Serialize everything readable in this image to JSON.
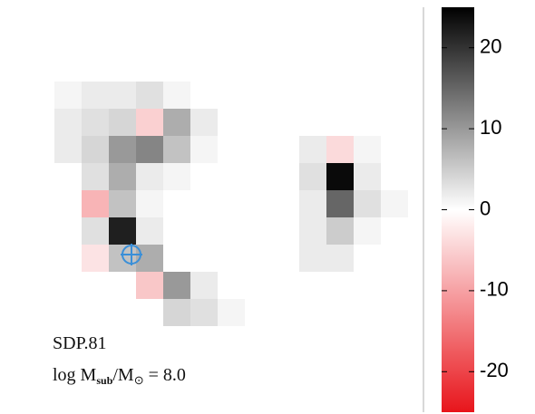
{
  "chart_data": {
    "type": "heatmap",
    "annotations": [
      "SDP.81"
    ],
    "label_parts": [
      "log M",
      "sub",
      "/M",
      "⊙",
      " = 8.0"
    ],
    "clim": [
      -25,
      25
    ],
    "cticks": [
      -20,
      -10,
      0,
      10,
      20
    ],
    "colormap": [
      "#e8151b",
      "#ffffff",
      "#000000"
    ],
    "marker_color": "#3a8fd8",
    "values": [
      [
        null,
        null,
        null,
        null,
        null,
        null,
        null,
        null,
        null,
        null,
        null,
        null,
        null,
        null,
        null
      ],
      [
        null,
        null,
        null,
        null,
        null,
        null,
        null,
        null,
        null,
        null,
        null,
        null,
        null,
        null,
        null
      ],
      [
        null,
        null,
        null,
        null,
        null,
        null,
        null,
        null,
        null,
        null,
        null,
        null,
        null,
        null,
        null
      ],
      [
        null,
        null,
        1,
        2,
        2,
        3,
        1,
        null,
        null,
        null,
        null,
        null,
        null,
        null,
        null
      ],
      [
        null,
        null,
        2,
        3,
        4,
        -5,
        8,
        2,
        null,
        null,
        null,
        null,
        null,
        null,
        null
      ],
      [
        null,
        null,
        2,
        4,
        10,
        12,
        6,
        1,
        null,
        null,
        null,
        2,
        -4,
        1,
        null
      ],
      [
        null,
        null,
        null,
        3,
        8,
        2,
        1,
        null,
        null,
        null,
        null,
        3,
        24,
        2,
        null
      ],
      [
        null,
        null,
        null,
        -8,
        6,
        1,
        null,
        null,
        null,
        null,
        null,
        2,
        15,
        3,
        1
      ],
      [
        null,
        null,
        null,
        3,
        22,
        2,
        null,
        null,
        null,
        null,
        null,
        2,
        5,
        1,
        null
      ],
      [
        null,
        null,
        null,
        -3,
        6,
        8,
        null,
        null,
        null,
        null,
        null,
        2,
        2,
        null,
        null
      ],
      [
        null,
        null,
        null,
        null,
        null,
        -6,
        10,
        2,
        null,
        null,
        null,
        null,
        null,
        null,
        null
      ],
      [
        null,
        null,
        null,
        null,
        null,
        null,
        4,
        3,
        1,
        null,
        null,
        null,
        null,
        null,
        null
      ],
      [
        null,
        null,
        null,
        null,
        null,
        null,
        null,
        null,
        null,
        null,
        null,
        null,
        null,
        null,
        null
      ],
      [
        null,
        null,
        null,
        null,
        null,
        null,
        null,
        null,
        null,
        null,
        null,
        null,
        null,
        null,
        null
      ],
      [
        null,
        null,
        null,
        null,
        null,
        null,
        null,
        null,
        null,
        null,
        null,
        null,
        null,
        null,
        null
      ]
    ]
  }
}
